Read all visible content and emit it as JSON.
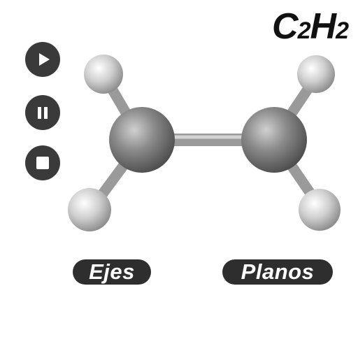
{
  "formula": {
    "c": "C",
    "c_sub": "2",
    "h": "H",
    "h_sub": "2"
  },
  "controls": {
    "play": "play-icon",
    "pause": "pause-icon",
    "stop": "stop-icon"
  },
  "buttons": {
    "axes_label": "Ejes",
    "planes_label": "Planos"
  },
  "colors": {
    "button_bg": "#2e2e2e",
    "carbon": "#808080",
    "hydrogen": "#c8c8c8",
    "bond": "#a0a0a0"
  }
}
